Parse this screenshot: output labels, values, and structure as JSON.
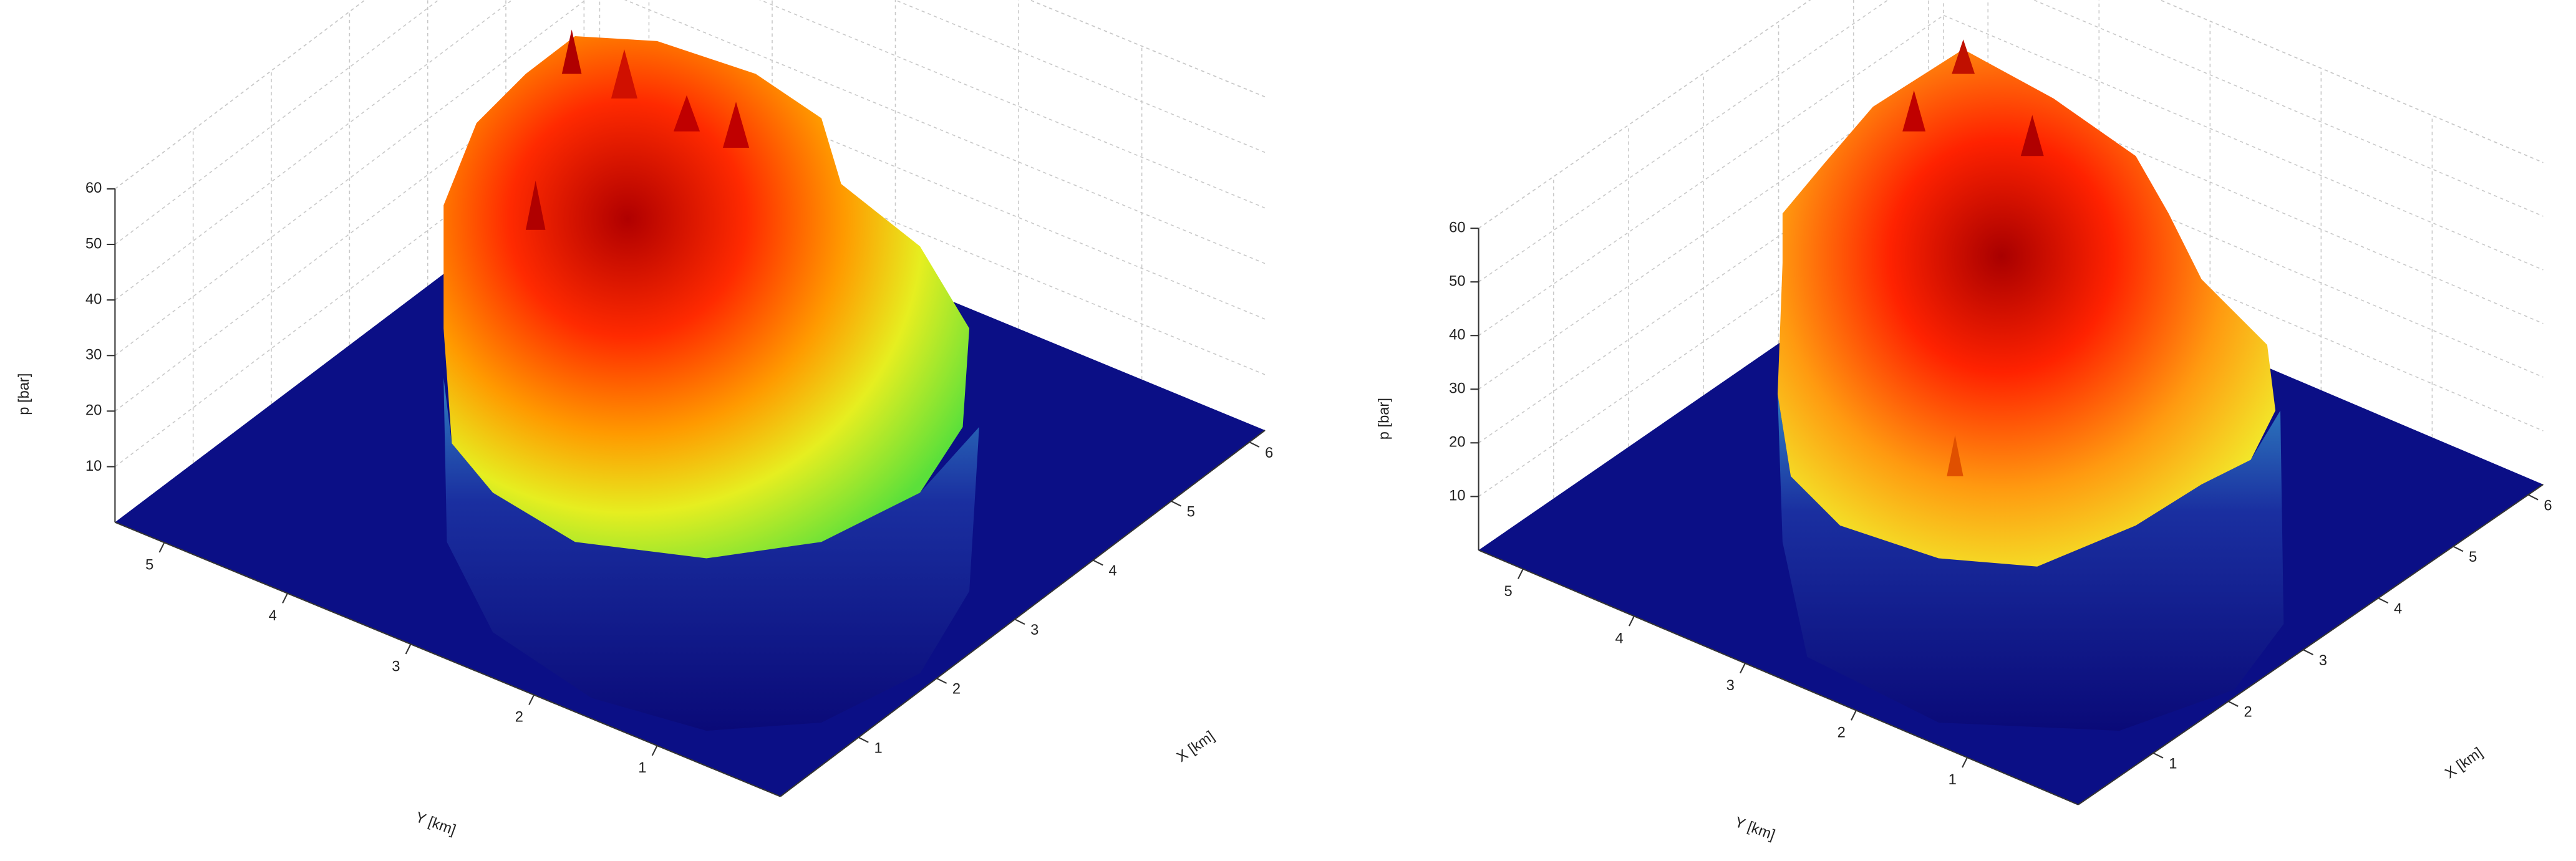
{
  "chart_data": [
    {
      "type": "surface",
      "zlabel": "p [bar]",
      "xlabel": "X [km]",
      "ylabel": "Y [km]",
      "xlim": [
        0,
        6.2
      ],
      "xticks": [
        1,
        2,
        3,
        4,
        5,
        6
      ],
      "ylim": [
        0,
        5.4
      ],
      "yticks": [
        1,
        2,
        3,
        4,
        5
      ],
      "zlim": [
        0,
        60
      ],
      "zticks": [
        10,
        20,
        30,
        40,
        50,
        60
      ],
      "grid": true
    },
    {
      "type": "surface",
      "zlabel": "p [bar]",
      "xlabel": "X [km]",
      "ylabel": "Y [km]",
      "xlim": [
        0,
        6.2
      ],
      "xticks": [
        1,
        2,
        3,
        4,
        5,
        6
      ],
      "ylim": [
        0,
        5.4
      ],
      "yticks": [
        1,
        2,
        3,
        4,
        5
      ],
      "zlim": [
        0,
        60
      ],
      "zticks": [
        10,
        20,
        30,
        40,
        50,
        60
      ],
      "grid": true
    }
  ]
}
